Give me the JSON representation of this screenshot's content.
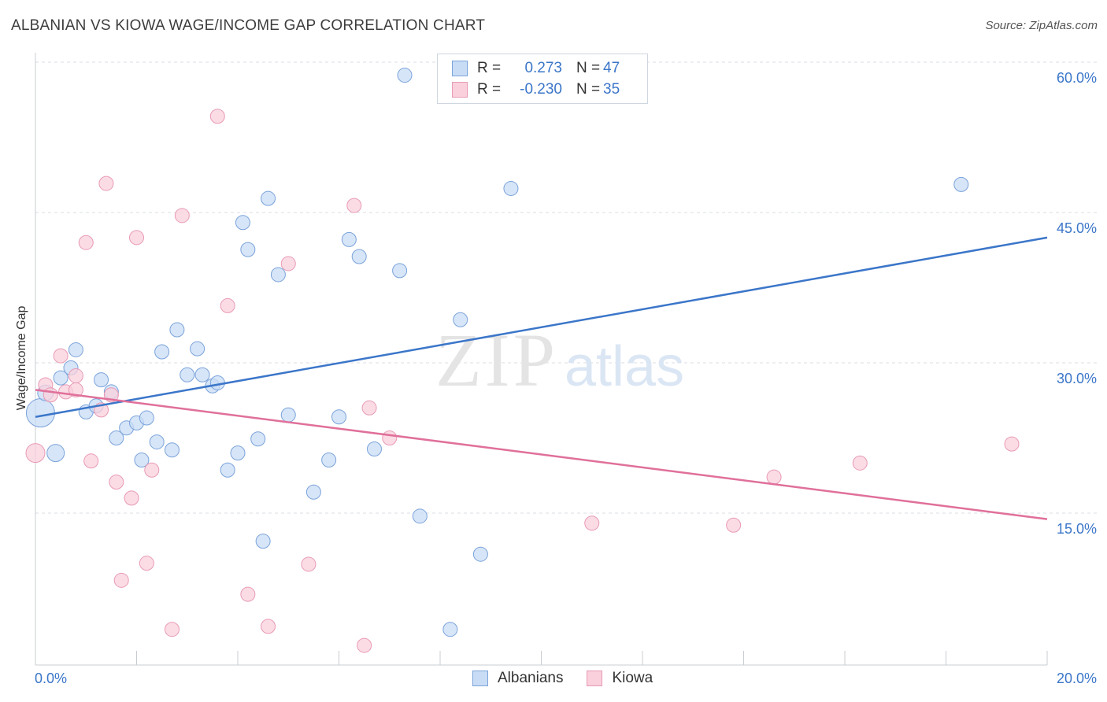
{
  "title": "ALBANIAN VS KIOWA WAGE/INCOME GAP CORRELATION CHART",
  "source": "Source: ZipAtlas.com",
  "watermark": {
    "zip": "ZIP",
    "atlas": "atlas"
  },
  "colors": {
    "albanians": "#3b76c9",
    "albanians_fill": "#c9dcf5",
    "kiowa": "#e0709a",
    "kiowa_fill": "#f9d0dc",
    "grid": "#d8dde3",
    "tick_text": "#3b76c9"
  },
  "legend": {
    "rows": [
      {
        "r_label": "R =",
        "r_value": "0.273",
        "n_label": "N =",
        "n_value": "47"
      },
      {
        "r_label": "R =",
        "r_value": "-0.230",
        "n_label": "N =",
        "n_value": "35"
      }
    ]
  },
  "bottom_legend": {
    "albanians": "Albanians",
    "kiowa": "Kiowa"
  },
  "chart_data": {
    "type": "scatter",
    "title": "ALBANIAN VS KIOWA WAGE/INCOME GAP CORRELATION CHART",
    "xlabel": "",
    "ylabel": "Wage/Income Gap",
    "xlim": [
      0,
      20
    ],
    "ylim": [
      0,
      61
    ],
    "x_tick_labels": [
      "0.0%",
      "20.0%"
    ],
    "y_ticks": [
      15,
      30,
      45,
      60
    ],
    "y_tick_labels": [
      "15.0%",
      "30.0%",
      "45.0%",
      "60.0%"
    ],
    "grid": true,
    "legend_position": "top-center",
    "series": [
      {
        "name": "Albanians",
        "r": 0.273,
        "n": 47,
        "trend": [
          [
            0,
            24.6
          ],
          [
            20,
            42.5
          ]
        ],
        "points": [
          [
            0.1,
            25.0,
            18
          ],
          [
            0.2,
            27.0,
            10
          ],
          [
            0.4,
            21.0,
            11
          ],
          [
            0.5,
            28.5,
            9
          ],
          [
            0.7,
            29.5,
            9
          ],
          [
            0.8,
            31.3,
            9
          ],
          [
            1.0,
            25.1,
            9
          ],
          [
            1.2,
            25.7,
            9
          ],
          [
            1.3,
            28.3,
            9
          ],
          [
            1.5,
            27.1,
            9
          ],
          [
            1.6,
            22.5,
            9
          ],
          [
            1.8,
            23.5,
            9
          ],
          [
            2.0,
            24.0,
            9
          ],
          [
            2.1,
            20.3,
            9
          ],
          [
            2.2,
            24.5,
            9
          ],
          [
            2.4,
            22.1,
            9
          ],
          [
            2.5,
            31.1,
            9
          ],
          [
            2.7,
            21.3,
            9
          ],
          [
            2.8,
            33.3,
            9
          ],
          [
            3.0,
            28.8,
            9
          ],
          [
            3.2,
            31.4,
            9
          ],
          [
            3.3,
            28.8,
            9
          ],
          [
            3.5,
            27.7,
            9
          ],
          [
            3.6,
            28.0,
            9
          ],
          [
            3.8,
            19.3,
            9
          ],
          [
            4.0,
            21.0,
            9
          ],
          [
            4.1,
            44.0,
            9
          ],
          [
            4.2,
            41.3,
            9
          ],
          [
            4.4,
            22.4,
            9
          ],
          [
            4.5,
            12.2,
            9
          ],
          [
            4.6,
            46.4,
            9
          ],
          [
            4.8,
            38.8,
            9
          ],
          [
            5.0,
            24.8,
            9
          ],
          [
            5.5,
            17.1,
            9
          ],
          [
            5.8,
            20.3,
            9
          ],
          [
            6.0,
            24.6,
            9
          ],
          [
            6.2,
            42.3,
            9
          ],
          [
            6.4,
            40.6,
            9
          ],
          [
            6.7,
            21.4,
            9
          ],
          [
            7.2,
            39.2,
            9
          ],
          [
            7.3,
            58.7,
            9
          ],
          [
            7.6,
            14.7,
            9
          ],
          [
            8.2,
            3.4,
            9
          ],
          [
            8.4,
            34.3,
            9
          ],
          [
            8.8,
            10.9,
            9
          ],
          [
            9.4,
            47.4,
            9
          ],
          [
            18.3,
            47.8,
            9
          ]
        ]
      },
      {
        "name": "Kiowa",
        "r": -0.23,
        "n": 35,
        "trend": [
          [
            0,
            27.3
          ],
          [
            20,
            14.4
          ]
        ],
        "points": [
          [
            0.0,
            21.0,
            12
          ],
          [
            0.2,
            27.8,
            9
          ],
          [
            0.3,
            26.8,
            9
          ],
          [
            0.5,
            30.7,
            9
          ],
          [
            0.6,
            27.1,
            9
          ],
          [
            0.8,
            27.3,
            9
          ],
          [
            0.8,
            28.7,
            9
          ],
          [
            1.0,
            42.0,
            9
          ],
          [
            1.1,
            20.2,
            9
          ],
          [
            1.3,
            25.3,
            9
          ],
          [
            1.4,
            47.9,
            9
          ],
          [
            1.5,
            26.8,
            9
          ],
          [
            1.6,
            18.1,
            9
          ],
          [
            1.7,
            8.3,
            9
          ],
          [
            1.9,
            16.5,
            9
          ],
          [
            2.0,
            42.5,
            9
          ],
          [
            2.2,
            10.0,
            9
          ],
          [
            2.3,
            19.3,
            9
          ],
          [
            2.7,
            3.4,
            9
          ],
          [
            2.9,
            44.7,
            9
          ],
          [
            3.6,
            54.6,
            9
          ],
          [
            3.8,
            35.7,
            9
          ],
          [
            4.2,
            6.9,
            9
          ],
          [
            4.6,
            3.7,
            9
          ],
          [
            5.0,
            39.9,
            9
          ],
          [
            5.4,
            9.9,
            9
          ],
          [
            6.3,
            45.7,
            9
          ],
          [
            6.5,
            1.8,
            9
          ],
          [
            6.6,
            25.5,
            9
          ],
          [
            7.0,
            22.5,
            9
          ],
          [
            11.0,
            14.0,
            9
          ],
          [
            13.8,
            13.8,
            9
          ],
          [
            14.6,
            18.6,
            9
          ],
          [
            16.3,
            20.0,
            9
          ],
          [
            19.3,
            21.9,
            9
          ]
        ]
      }
    ]
  }
}
